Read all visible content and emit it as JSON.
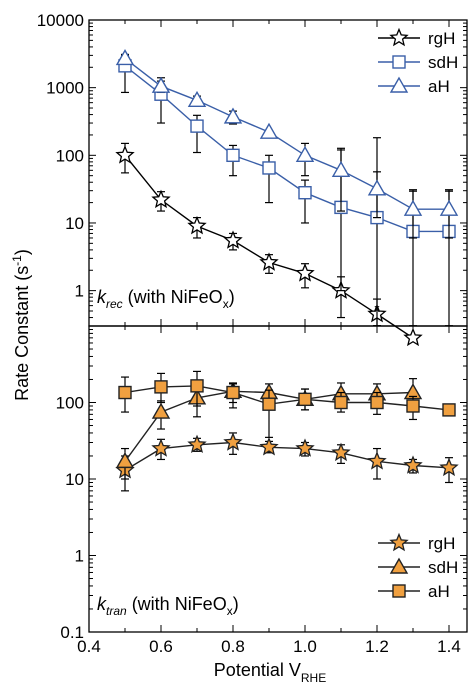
{
  "chart_data": [
    {
      "type": "line",
      "scale": "log",
      "ylim": [
        0.3,
        10000
      ],
      "xlim": [
        0.4,
        1.45
      ],
      "yticks": [
        1,
        10,
        100,
        1000,
        10000
      ],
      "ytick_labels": [
        "1",
        "10",
        "100",
        "1000",
        "10000"
      ],
      "xlabel": "",
      "annotation": {
        "k": "k",
        "sub": "rec",
        "text": " (with NiFeO",
        "sub2": "x",
        "close": ")"
      },
      "stray_label": "x",
      "legend_position": "top-right",
      "series": [
        {
          "name": "rgH",
          "marker": "star",
          "color": "#000000",
          "x": [
            0.5,
            0.6,
            0.7,
            0.8,
            0.9,
            1.0,
            1.1,
            1.2,
            1.3
          ],
          "y": [
            100,
            22,
            9,
            5.5,
            2.6,
            1.8,
            1.0,
            0.45,
            0.2
          ],
          "err_up": [
            50,
            7,
            3,
            1.5,
            0.8,
            0.7,
            0.6,
            0.3,
            0.0
          ],
          "err_down": [
            45,
            7,
            3,
            1.5,
            0.8,
            0.7,
            0.6,
            0.3,
            0.0
          ]
        },
        {
          "name": "sdH",
          "marker": "square",
          "color": "#3a5fa8",
          "x": [
            0.5,
            0.6,
            0.7,
            0.8,
            0.9,
            1.0,
            1.1,
            1.2,
            1.3,
            1.4
          ],
          "y": [
            2100,
            800,
            270,
            100,
            65,
            28,
            17,
            12,
            7.5,
            7.5
          ],
          "err_up": [
            900,
            600,
            120,
            40,
            35,
            15,
            110,
            170,
            22,
            22
          ],
          "err_down": [
            1250,
            500,
            160,
            50,
            45,
            18,
            16,
            11.7,
            7.2,
            7.2
          ]
        },
        {
          "name": "aH",
          "marker": "triangle",
          "color": "#3a5fa8",
          "x": [
            0.5,
            0.6,
            0.7,
            0.8,
            0.9,
            1.0,
            1.1,
            1.2,
            1.3,
            1.4
          ],
          "y": [
            2700,
            1050,
            650,
            370,
            220,
            100,
            60,
            32,
            16,
            16
          ],
          "err_up": [
            400,
            200,
            100,
            80,
            0,
            50,
            60,
            25,
            15,
            15
          ],
          "err_down": [
            400,
            200,
            100,
            80,
            0,
            50,
            45,
            20,
            10,
            10
          ]
        }
      ]
    },
    {
      "type": "line",
      "scale": "log",
      "ylim": [
        0.1,
        1000
      ],
      "xlim": [
        0.4,
        1.45
      ],
      "yticks": [
        0.1,
        1,
        10,
        100
      ],
      "ytick_labels": [
        "0.1",
        "1",
        "10",
        "100"
      ],
      "xticks": [
        0.4,
        0.6,
        0.8,
        1.0,
        1.2,
        1.4
      ],
      "xtick_labels": [
        "0.4",
        "0.6",
        "0.8",
        "1.0",
        "1.2",
        "1.4"
      ],
      "annotation": {
        "k": "k",
        "sub": "tran",
        "text": " (with NiFeO",
        "sub2": "x",
        "close": ")"
      },
      "legend_position": "bottom-right",
      "series": [
        {
          "name": "rgH",
          "marker": "star",
          "color": "#f0a040",
          "x": [
            0.5,
            0.6,
            0.7,
            0.8,
            0.9,
            1.0,
            1.1,
            1.2,
            1.3,
            1.4
          ],
          "y": [
            13,
            25,
            28,
            30,
            26,
            25,
            22,
            17,
            15,
            14
          ],
          "err_up": [
            7,
            8,
            6,
            10,
            5,
            5,
            6,
            8,
            3,
            5
          ],
          "err_down": [
            6,
            7,
            5,
            9,
            4,
            5,
            6,
            7,
            3,
            5
          ]
        },
        {
          "name": "sdH",
          "marker": "triangle",
          "color": "#f0a040",
          "x": [
            0.5,
            0.6,
            0.7,
            0.8,
            0.9,
            1.0,
            1.1,
            1.2,
            1.3
          ],
          "y": [
            17,
            75,
            115,
            140,
            135,
            110,
            130,
            130,
            135
          ],
          "err_up": [
            8,
            30,
            60,
            40,
            40,
            40,
            50,
            45,
            70
          ],
          "err_down": [
            7,
            30,
            50,
            40,
            30,
            30,
            40,
            40,
            50
          ]
        },
        {
          "name": "aH",
          "marker": "square",
          "color": "#f0a040",
          "x": [
            0.5,
            0.6,
            0.7,
            0.8,
            0.9,
            1.0,
            1.1,
            1.2,
            1.3,
            1.4
          ],
          "y": [
            135,
            160,
            165,
            135,
            95,
            110,
            100,
            100,
            90,
            80
          ],
          "err_up": [
            80,
            80,
            90,
            40,
            50,
            40,
            35,
            35,
            30,
            15
          ],
          "err_down": [
            60,
            60,
            75,
            50,
            60,
            30,
            25,
            30,
            30,
            10
          ]
        }
      ]
    }
  ],
  "ylabel": {
    "main": "Rate Constant (s",
    "sup": "-1",
    "close": ")"
  },
  "xlabel": {
    "main": "Potential V",
    "sub": "RHE"
  }
}
